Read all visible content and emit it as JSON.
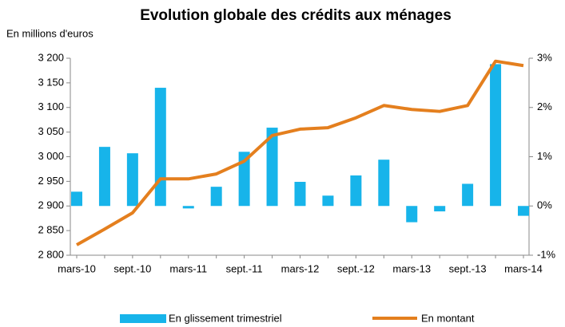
{
  "chart_data": {
    "type": "bar_line",
    "title": "Evolution globale des crédits aux ménages",
    "y_axis_label": "En millions d'euros",
    "categories": [
      "mars-10",
      null,
      "sept.-10",
      null,
      "mars-11",
      null,
      "sept.-11",
      null,
      "mars-12",
      null,
      "sept.-12",
      null,
      "mars-13",
      null,
      "sept.-13",
      null,
      "mars-14"
    ],
    "series": [
      {
        "name": "En glissement trimestriel",
        "type": "bar",
        "axis": "y2",
        "color": "#17b4ea",
        "values": [
          0.29,
          1.2,
          1.07,
          2.4,
          -0.05,
          0.39,
          1.1,
          1.59,
          0.49,
          0.21,
          0.62,
          0.94,
          -0.33,
          -0.11,
          0.45,
          2.88,
          -0.2
        ]
      },
      {
        "name": "En montant",
        "type": "line",
        "axis": "y",
        "color": "#e47f1e",
        "values": [
          2821,
          2853,
          2886,
          2955,
          2955,
          2965,
          2991,
          3043,
          3056,
          3059,
          3079,
          3104,
          3096,
          3092,
          3104,
          3194,
          3185
        ]
      }
    ],
    "ylim": [
      2800,
      3200
    ],
    "yticks": [
      {
        "value": 2800,
        "label": "2 800"
      },
      {
        "value": 2850,
        "label": "2 850"
      },
      {
        "value": 2900,
        "label": "2 900"
      },
      {
        "value": 2950,
        "label": "2 950"
      },
      {
        "value": 3000,
        "label": "3 000"
      },
      {
        "value": 3050,
        "label": "3 050"
      },
      {
        "value": 3100,
        "label": "3 100"
      },
      {
        "value": 3150,
        "label": "3 150"
      },
      {
        "value": 3200,
        "label": "3 200"
      }
    ],
    "y2lim": [
      -1,
      3
    ],
    "y2ticks": [
      {
        "value": -1,
        "label": "-1%"
      },
      {
        "value": 0,
        "label": "0%"
      },
      {
        "value": 1,
        "label": "1%"
      },
      {
        "value": 2,
        "label": "2%"
      },
      {
        "value": 3,
        "label": "3%"
      }
    ]
  }
}
